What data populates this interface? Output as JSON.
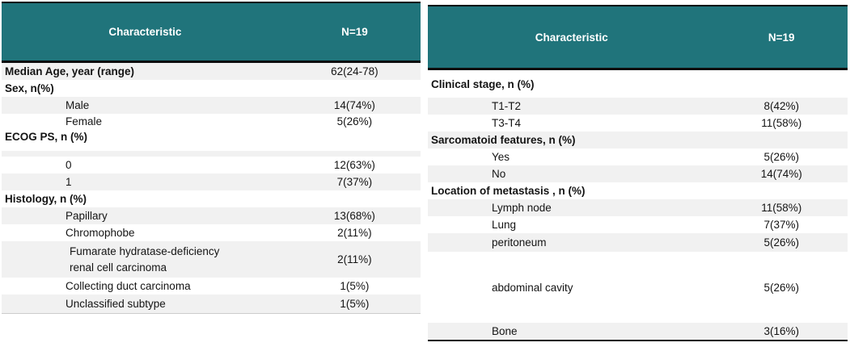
{
  "theme": {
    "header_bg": "#20747B",
    "header_text": "#FFFFFF",
    "stripe_bg": "#F1F1F1",
    "border_dark": "#0D0D0D",
    "body_text": "#141414"
  },
  "tables": [
    {
      "name": "patient-demographics",
      "header": {
        "characteristic": "Characteristic",
        "n": "N=19"
      },
      "rows": [
        {
          "type": "category",
          "shaded": true,
          "label": "Median Age, year (range)",
          "value": "62(24-78)"
        },
        {
          "type": "category",
          "shaded": false,
          "label": "Sex, n(%)",
          "value": ""
        },
        {
          "type": "sub",
          "shaded": true,
          "label": "Male",
          "value": "14(74%)"
        },
        {
          "type": "sub",
          "shaded": false,
          "variant": "short",
          "label": "Female",
          "value": "5(26%)"
        },
        {
          "type": "category",
          "shaded": false,
          "variant": "roomy",
          "label": "ECOG PS, n (%)",
          "value": ""
        },
        {
          "type": "spacer",
          "shaded": true
        },
        {
          "type": "sub",
          "shaded": false,
          "label": "0",
          "value": "12(63%)"
        },
        {
          "type": "sub",
          "shaded": true,
          "label": "1",
          "value": "7(37%)"
        },
        {
          "type": "category",
          "shaded": false,
          "label": "Histology, n (%)",
          "value": ""
        },
        {
          "type": "sub",
          "shaded": true,
          "label": "Papillary",
          "value": "13(68%)"
        },
        {
          "type": "sub",
          "shaded": false,
          "label": "Chromophobe",
          "value": "2(11%)"
        },
        {
          "type": "sub",
          "shaded": true,
          "variant": "twoline",
          "label": "Fumarate hydratase-deficiency\nrenal cell carcinoma",
          "value": "2(11%)"
        },
        {
          "type": "sub",
          "shaded": false,
          "label": "Collecting duct carcinoma",
          "value": "1(5%)"
        },
        {
          "type": "sub",
          "shaded": true,
          "variant": "padded",
          "label": "Unclassified subtype",
          "value": "1(5%)"
        }
      ]
    },
    {
      "name": "disease-characteristics",
      "header": {
        "characteristic": "Characteristic",
        "n": "N=19"
      },
      "rows": [
        {
          "type": "category",
          "shaded": false,
          "variant": "tall",
          "label": "Clinical stage, n (%)",
          "value": ""
        },
        {
          "type": "sub",
          "shaded": true,
          "label": "T1-T2",
          "value": "8(42%)"
        },
        {
          "type": "sub",
          "shaded": false,
          "label": "T3-T4",
          "value": "11(58%)"
        },
        {
          "type": "category",
          "shaded": true,
          "label": "Sarcomatoid features, n (%)",
          "value": ""
        },
        {
          "type": "sub",
          "shaded": false,
          "label": "Yes",
          "value": "5(26%)"
        },
        {
          "type": "sub",
          "shaded": true,
          "label": "No",
          "value": "14(74%)"
        },
        {
          "type": "category",
          "shaded": false,
          "label": "Location of metastasis , n (%)",
          "value": ""
        },
        {
          "type": "sub",
          "shaded": true,
          "label": "Lymph node",
          "value": "11(58%)"
        },
        {
          "type": "sub",
          "shaded": false,
          "label": "Lung",
          "value": "7(37%)"
        },
        {
          "type": "sub",
          "shaded": true,
          "variant": "padded",
          "label": "peritoneum",
          "value": "5(26%)"
        },
        {
          "type": "gap",
          "shaded": false
        },
        {
          "type": "sub",
          "shaded": false,
          "variant": "xtall",
          "label": "abdominal cavity",
          "value": "5(26%)"
        },
        {
          "type": "gap",
          "shaded": false
        },
        {
          "type": "sub",
          "shaded": true,
          "label": "Bone",
          "value": "3(16%)"
        }
      ]
    }
  ]
}
